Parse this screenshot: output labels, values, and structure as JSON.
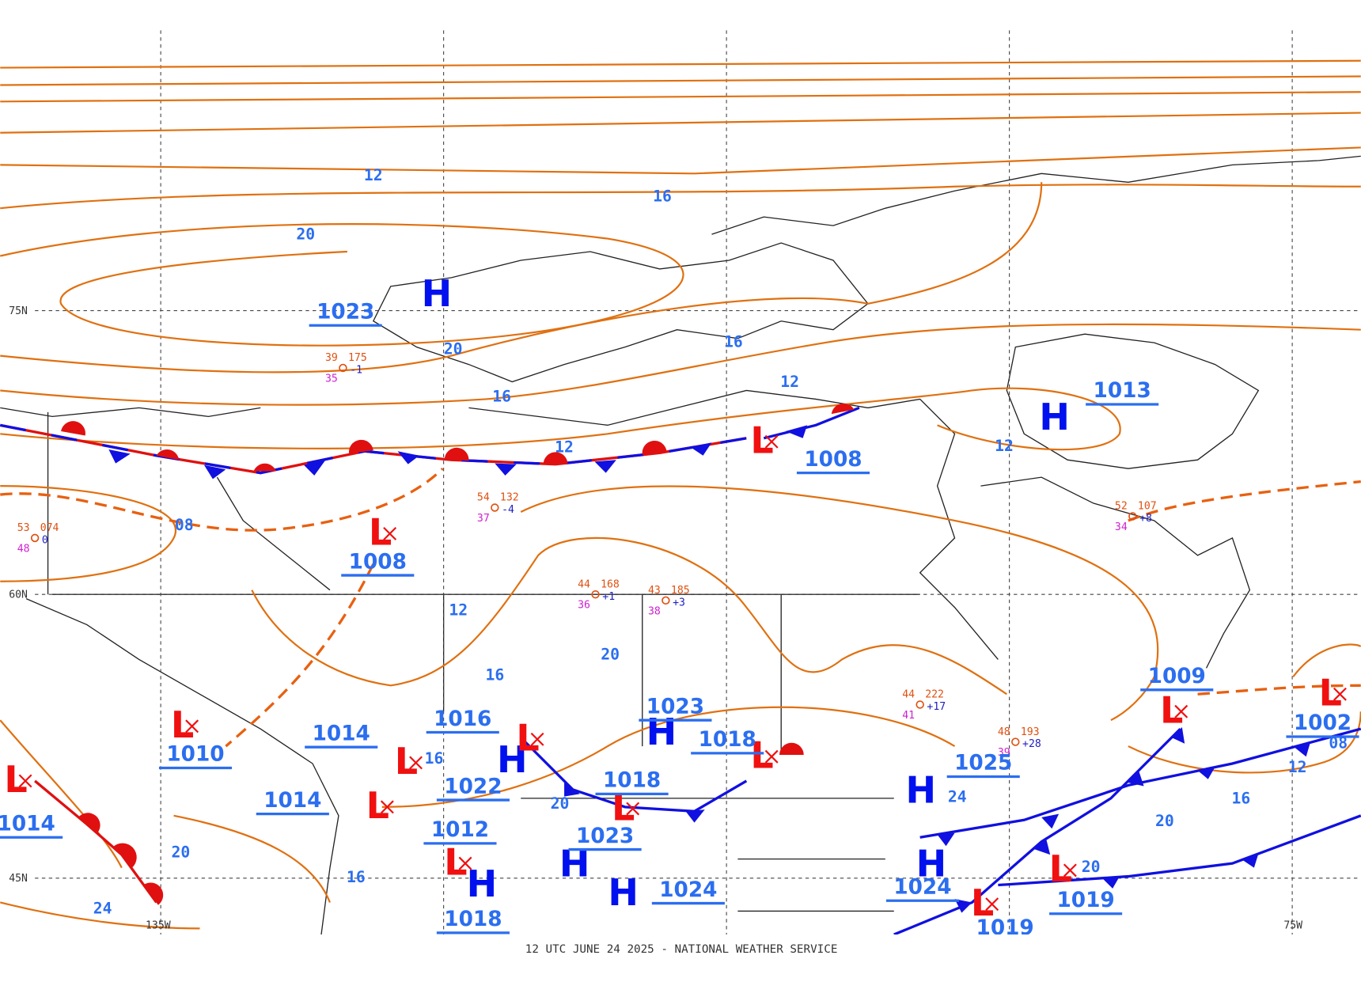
{
  "map": {
    "footer": "12 UTC JUNE 24 2025 - NATIONAL WEATHER SERVICE",
    "grid_labels": [
      "75N",
      "60N",
      "45N",
      "135W",
      "75W"
    ],
    "highs": [
      {
        "symbol": "H",
        "pressure": "1023"
      },
      {
        "symbol": "H",
        "pressure": "1013"
      },
      {
        "symbol": "H",
        "pressure": "1023"
      },
      {
        "symbol": "H",
        "pressure": "1025"
      },
      {
        "symbol": "H",
        "pressure": "1024"
      },
      {
        "symbol": "H",
        "pressure": "1022"
      },
      {
        "symbol": "H",
        "pressure": "1023"
      },
      {
        "symbol": "H",
        "pressure": "1018"
      },
      {
        "symbol": "H",
        "pressure": "1024"
      }
    ],
    "lows": [
      {
        "symbol": "L",
        "pressure": "1008"
      },
      {
        "symbol": "L",
        "pressure": "1008"
      },
      {
        "symbol": "L",
        "pressure": "1010"
      },
      {
        "symbol": "L",
        "pressure": "1014"
      },
      {
        "symbol": "L",
        "pressure": "1016"
      },
      {
        "symbol": "L",
        "pressure": "1014"
      },
      {
        "symbol": "L",
        "pressure": "1014"
      },
      {
        "symbol": "L",
        "pressure": "1012"
      },
      {
        "symbol": "L",
        "pressure": "1018"
      },
      {
        "symbol": "L",
        "pressure": "1018"
      },
      {
        "symbol": "L",
        "pressure": "1009"
      },
      {
        "symbol": "L",
        "pressure": "1002"
      },
      {
        "symbol": "L",
        "pressure": "1019"
      },
      {
        "symbol": "L",
        "pressure": "1019"
      }
    ],
    "isobar_labels": [
      "12",
      "16",
      "20",
      "20",
      "16",
      "16",
      "12",
      "12",
      "12",
      "08",
      "12",
      "16",
      "20",
      "16",
      "20",
      "24",
      "20",
      "16",
      "12",
      "20",
      "16",
      "24",
      "20",
      "08"
    ],
    "stations": [
      {
        "temperature": "39",
        "dewpoint": "35",
        "pressure": "175",
        "tendency": "-1"
      },
      {
        "temperature": "44",
        "dewpoint": "36",
        "pressure": "168",
        "tendency": "+1"
      },
      {
        "temperature": "43",
        "dewpoint": "38",
        "pressure": "185",
        "tendency": "+3"
      },
      {
        "temperature": "44",
        "dewpoint": "41",
        "pressure": "222",
        "tendency": "+17"
      },
      {
        "temperature": "48",
        "dewpoint": "39",
        "pressure": "193",
        "tendency": "+28"
      },
      {
        "temperature": "52",
        "dewpoint": "34",
        "pressure": "107",
        "tendency": "+8"
      },
      {
        "temperature": "54",
        "dewpoint": "37",
        "pressure": "132",
        "tendency": "-4"
      },
      {
        "temperature": "53",
        "dewpoint": "48",
        "pressure": "074",
        "tendency": "0"
      }
    ]
  }
}
